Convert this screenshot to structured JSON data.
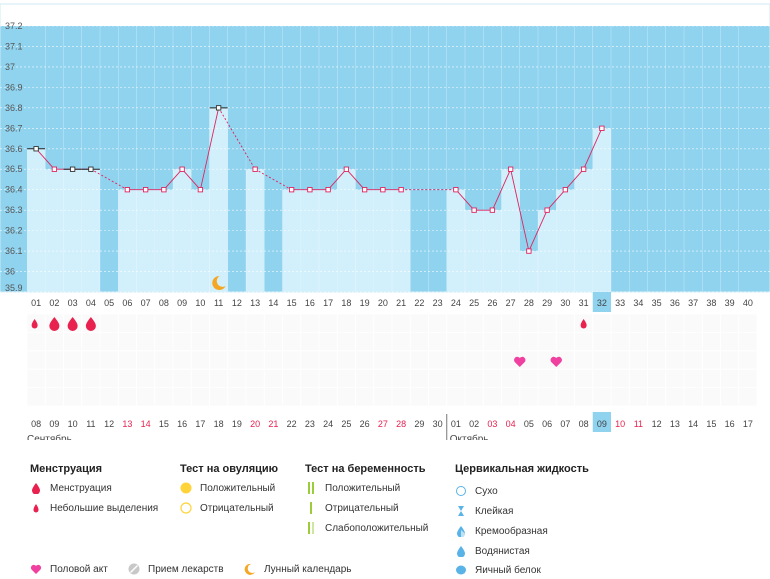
{
  "chart_data": {
    "type": "line",
    "unit": "°C",
    "ylim": [
      35.9,
      37.2
    ],
    "yticks": [
      "37.2",
      "37.1",
      "37",
      "36.9",
      "36.8",
      "36.7",
      "36.6",
      "36.5",
      "36.4",
      "36.3",
      "36.2",
      "36.1",
      "36",
      "35.9"
    ],
    "cycle_days": [
      "01",
      "02",
      "03",
      "04",
      "05",
      "06",
      "07",
      "08",
      "09",
      "10",
      "11",
      "12",
      "13",
      "14",
      "15",
      "16",
      "17",
      "18",
      "19",
      "20",
      "21",
      "22",
      "23",
      "24",
      "25",
      "26",
      "27",
      "28",
      "29",
      "30",
      "31",
      "32",
      "33",
      "34",
      "35",
      "36",
      "37",
      "38",
      "39",
      "40"
    ],
    "current_day": "32",
    "temperatures": [
      36.6,
      36.5,
      36.5,
      36.5,
      null,
      36.4,
      36.4,
      36.4,
      36.5,
      36.4,
      36.8,
      null,
      36.5,
      null,
      36.4,
      36.4,
      36.4,
      36.5,
      36.4,
      36.4,
      36.4,
      null,
      null,
      36.4,
      36.3,
      36.3,
      36.5,
      36.1,
      36.3,
      36.4,
      36.5,
      36.7,
      null,
      null,
      null,
      null,
      null,
      null,
      null,
      null
    ],
    "coverline_days": [
      "01",
      "03",
      "04",
      "11"
    ],
    "menstruation_marks": [
      {
        "day": "01",
        "type": "small"
      },
      {
        "day": "02",
        "type": "full"
      },
      {
        "day": "03",
        "type": "full"
      },
      {
        "day": "04",
        "type": "full"
      },
      {
        "day": "31",
        "type": "small"
      }
    ],
    "intercourse_days": [
      "27",
      "29"
    ],
    "moon_day": "11",
    "dates": [
      "08",
      "09",
      "10",
      "11",
      "12",
      "13",
      "14",
      "15",
      "16",
      "17",
      "18",
      "19",
      "20",
      "21",
      "22",
      "23",
      "24",
      "25",
      "26",
      "27",
      "28",
      "29",
      "30",
      "01",
      "02",
      "03",
      "04",
      "05",
      "06",
      "07",
      "08",
      "09",
      "10",
      "11",
      "12",
      "13",
      "14",
      "15",
      "16",
      "17"
    ],
    "red_dates_idx": [
      5,
      6,
      12,
      13,
      19,
      20,
      25,
      26,
      32,
      33
    ],
    "months": [
      {
        "label": "Сентябрь"
      },
      {
        "label": "Октябрь"
      }
    ]
  },
  "legend": {
    "menstruation": {
      "title": "Менструация",
      "items": [
        "Менструация",
        "Небольшие выделения"
      ]
    },
    "ovulation": {
      "title": "Тест на овуляцию",
      "items": [
        "Положительный",
        "Отрицательный"
      ]
    },
    "pregnancy": {
      "title": "Тест на беременность",
      "items": [
        "Положительный",
        "Отрицательный",
        "Слабоположительный"
      ]
    },
    "cervical": {
      "title": "Цервикальная жидкость",
      "items": [
        "Сухо",
        "Клейкая",
        "Кремообразная",
        "Водянистая",
        "Яичный белок"
      ]
    },
    "bottom": [
      "Половой акт",
      "Прием лекарств",
      "Лунный календарь"
    ]
  },
  "colors": {
    "sky": "#8fd3ef",
    "bar": "#d2effc",
    "line": "#e0245e",
    "blood": "#e8214f",
    "yellow": "#ffd43b",
    "green": "#9ccc3a",
    "water": "#5ab3e6",
    "highlight": "#8fd3ef",
    "moon": "#f5a623"
  }
}
